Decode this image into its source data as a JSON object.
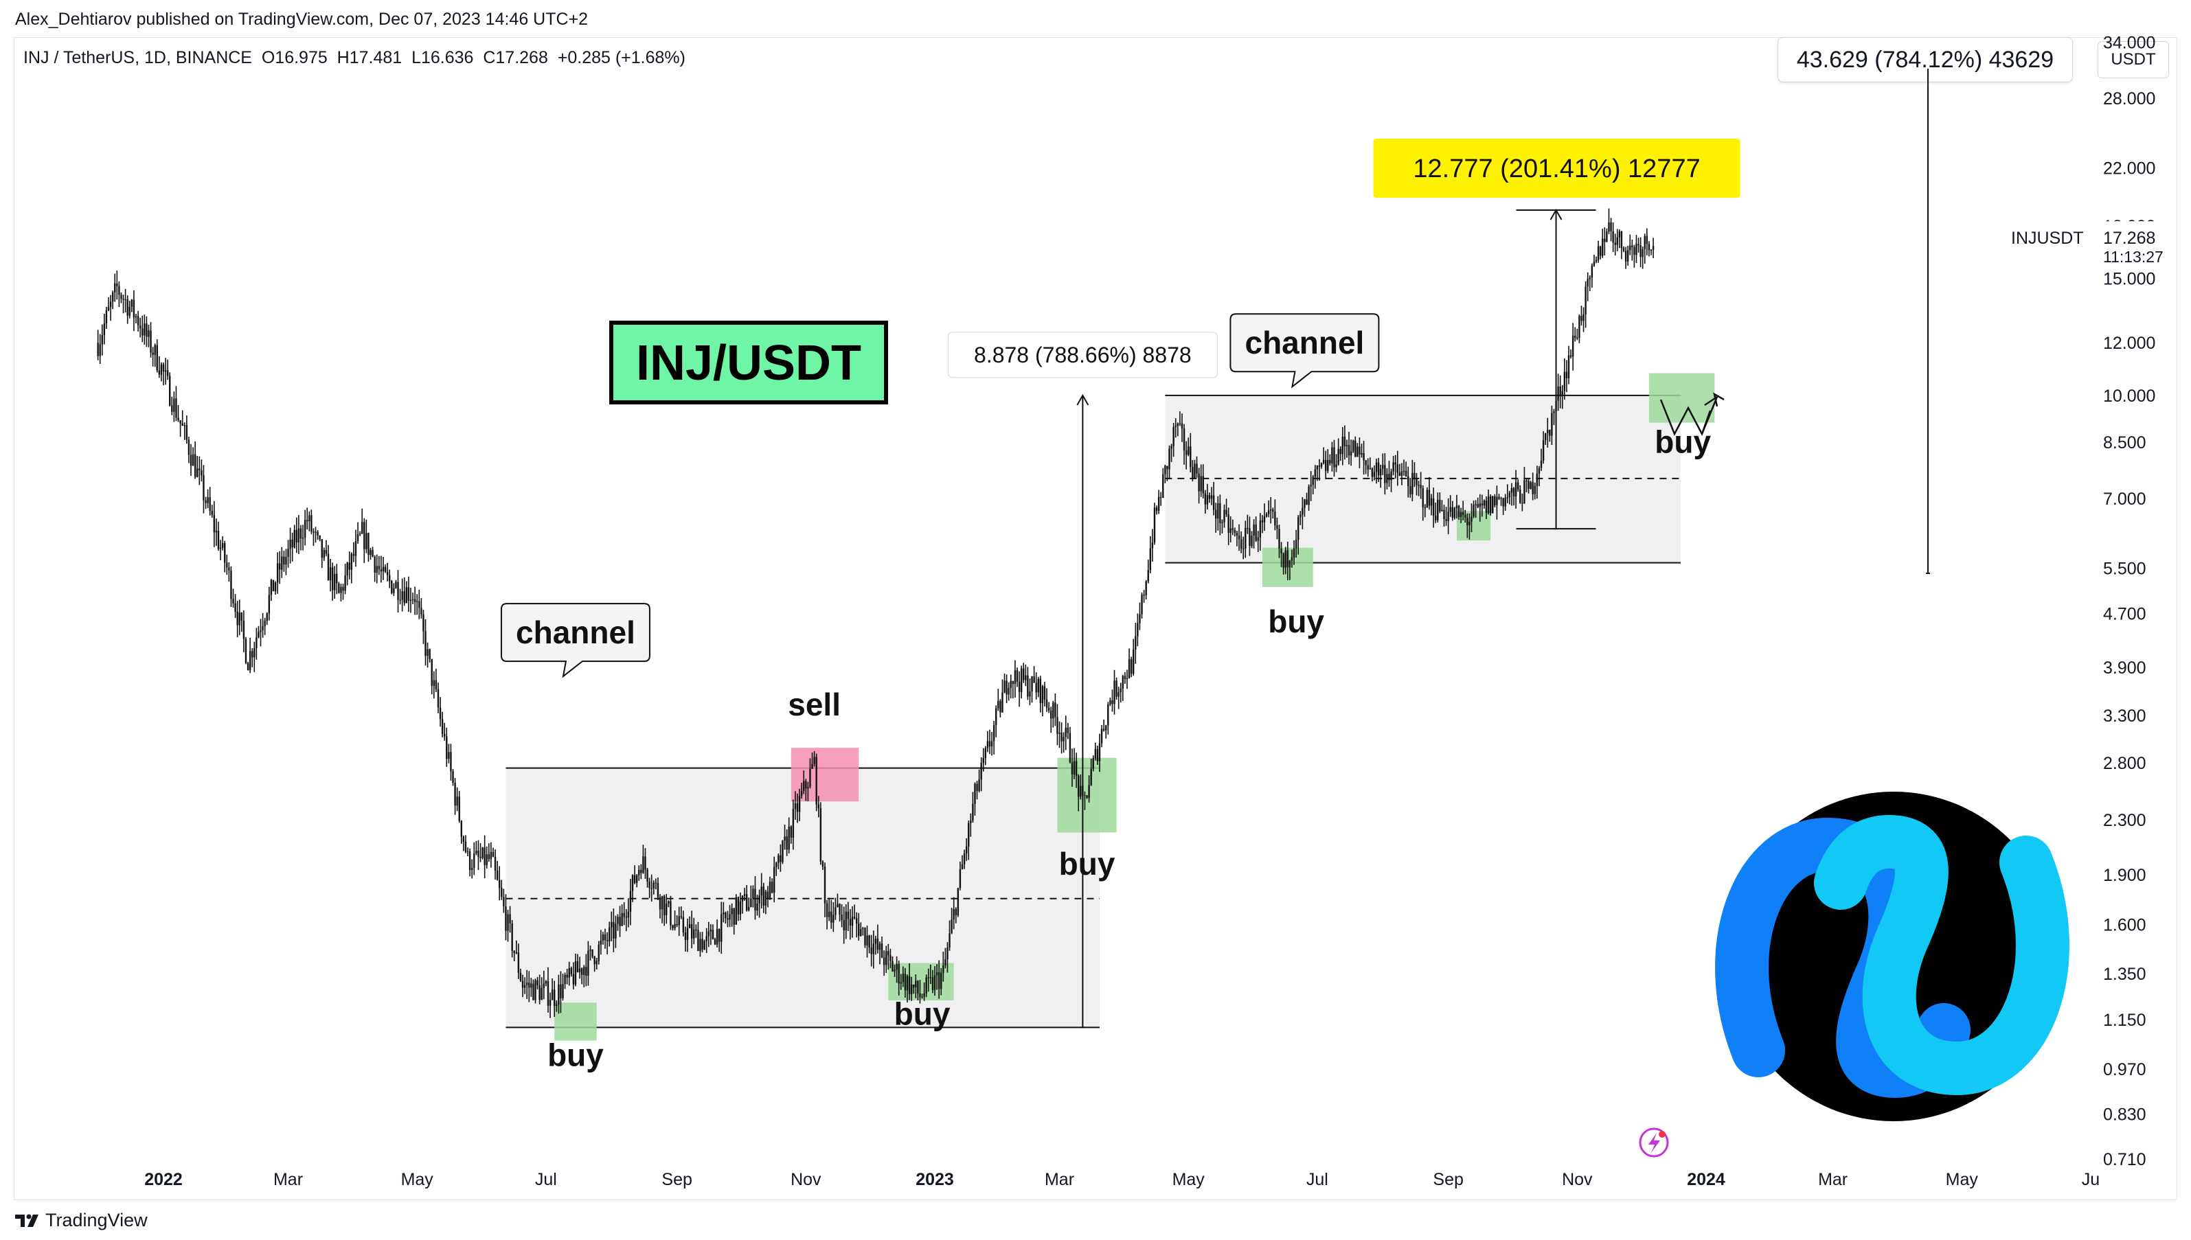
{
  "publisher": "Alex_Dehtiarov published on TradingView.com, Dec 07, 2023 14:46 UTC+2",
  "symbol_info": "INJ / TetherUS, 1D, BINANCE  O16.975  H17.481  L16.636  C17.268  +0.285 (+1.68%)",
  "currency": "USDT",
  "footer_brand": "TradingView",
  "chart_data": {
    "type": "candlestick",
    "title": "INJ/USDT",
    "symbol": "INJ / TetherUS, 1D, BINANCE",
    "last_price": {
      "label": "INJUSDT",
      "value": "17.268",
      "countdown": "11:13:27"
    },
    "y_scale": "log",
    "ylim": [
      0.65,
      40
    ],
    "y_ticks": [
      "34.000",
      "28.000",
      "22.000",
      "18.000",
      "15.000",
      "12.000",
      "10.000",
      "8.500",
      "7.000",
      "5.500",
      "4.700",
      "3.900",
      "3.300",
      "2.800",
      "2.300",
      "1.900",
      "1.600",
      "1.350",
      "1.150",
      "0.970",
      "0.830",
      "0.710"
    ],
    "x_ticks": [
      {
        "label": "2022",
        "date": "2022-01-01",
        "bold": true
      },
      {
        "label": "Mar",
        "date": "2022-03-01"
      },
      {
        "label": "May",
        "date": "2022-05-01"
      },
      {
        "label": "Jul",
        "date": "2022-07-01"
      },
      {
        "label": "Sep",
        "date": "2022-09-01"
      },
      {
        "label": "Nov",
        "date": "2022-11-01"
      },
      {
        "label": "2023",
        "date": "2023-01-01",
        "bold": true
      },
      {
        "label": "Mar",
        "date": "2023-03-01"
      },
      {
        "label": "May",
        "date": "2023-05-01"
      },
      {
        "label": "Jul",
        "date": "2023-07-01"
      },
      {
        "label": "Sep",
        "date": "2023-09-01"
      },
      {
        "label": "Nov",
        "date": "2023-11-01"
      },
      {
        "label": "2024",
        "date": "2024-01-01",
        "bold": true
      },
      {
        "label": "Mar",
        "date": "2024-03-01"
      },
      {
        "label": "May",
        "date": "2024-05-01"
      },
      {
        "label": "Ju",
        "date": "2024-07-01"
      }
    ],
    "price_path": [
      [
        "2021-12-01",
        12.0
      ],
      [
        "2021-12-10",
        14.5
      ],
      [
        "2021-12-20",
        13.0
      ],
      [
        "2021-12-31",
        11.0
      ],
      [
        "2022-01-15",
        8.0
      ],
      [
        "2022-01-31",
        5.5
      ],
      [
        "2022-02-10",
        4.0
      ],
      [
        "2022-02-25",
        5.5
      ],
      [
        "2022-03-10",
        6.5
      ],
      [
        "2022-03-25",
        5.0
      ],
      [
        "2022-04-05",
        6.2
      ],
      [
        "2022-04-15",
        5.3
      ],
      [
        "2022-04-30",
        5.0
      ],
      [
        "2022-05-10",
        3.5
      ],
      [
        "2022-05-25",
        2.0
      ],
      [
        "2022-06-05",
        2.0
      ],
      [
        "2022-06-20",
        1.3
      ],
      [
        "2022-07-05",
        1.25
      ],
      [
        "2022-07-20",
        1.4
      ],
      [
        "2022-08-05",
        1.6
      ],
      [
        "2022-08-15",
        2.0
      ],
      [
        "2022-08-31",
        1.6
      ],
      [
        "2022-09-15",
        1.5
      ],
      [
        "2022-09-30",
        1.7
      ],
      [
        "2022-10-15",
        1.8
      ],
      [
        "2022-10-28",
        2.4
      ],
      [
        "2022-11-05",
        2.8
      ],
      [
        "2022-11-10",
        1.7
      ],
      [
        "2022-11-25",
        1.6
      ],
      [
        "2022-12-10",
        1.4
      ],
      [
        "2022-12-25",
        1.25
      ],
      [
        "2023-01-05",
        1.35
      ],
      [
        "2023-01-20",
        2.5
      ],
      [
        "2023-02-05",
        3.8
      ],
      [
        "2023-02-20",
        3.6
      ],
      [
        "2023-03-05",
        3.0
      ],
      [
        "2023-03-12",
        2.4
      ],
      [
        "2023-03-25",
        3.5
      ],
      [
        "2023-04-05",
        4.0
      ],
      [
        "2023-04-15",
        6.5
      ],
      [
        "2023-04-25",
        9.0
      ],
      [
        "2023-05-10",
        7.0
      ],
      [
        "2023-05-25",
        6.0
      ],
      [
        "2023-06-10",
        6.5
      ],
      [
        "2023-06-15",
        5.5
      ],
      [
        "2023-06-30",
        7.5
      ],
      [
        "2023-07-15",
        8.5
      ],
      [
        "2023-07-25",
        7.8
      ],
      [
        "2023-08-10",
        7.6
      ],
      [
        "2023-08-25",
        6.8
      ],
      [
        "2023-09-10",
        6.5
      ],
      [
        "2023-09-25",
        7.0
      ],
      [
        "2023-10-10",
        7.2
      ],
      [
        "2023-10-25",
        10.5
      ],
      [
        "2023-11-05",
        14.0
      ],
      [
        "2023-11-15",
        18.0
      ],
      [
        "2023-11-25",
        16.5
      ],
      [
        "2023-12-07",
        17.268
      ]
    ],
    "rectangles": [
      {
        "name": "channel-2022",
        "from": "2022-06-12",
        "to": "2023-03-20",
        "top": 2.75,
        "bottom": 1.12,
        "mid": 1.75
      },
      {
        "name": "channel-2023",
        "from": "2023-04-20",
        "to": "2023-12-20",
        "top": 10.0,
        "bottom": 5.6,
        "mid": 7.5
      }
    ],
    "zones": [
      {
        "kind": "buy",
        "from": "2022-07-05",
        "to": "2022-07-25",
        "top": 1.22,
        "bottom": 1.07
      },
      {
        "kind": "sell",
        "from": "2022-10-25",
        "to": "2022-11-26",
        "top": 2.95,
        "bottom": 2.45
      },
      {
        "kind": "buy",
        "from": "2022-12-10",
        "to": "2023-01-10",
        "top": 1.4,
        "bottom": 1.23
      },
      {
        "kind": "buy",
        "from": "2023-02-28",
        "to": "2023-03-28",
        "top": 2.85,
        "bottom": 2.2
      },
      {
        "kind": "buy",
        "from": "2023-06-05",
        "to": "2023-06-29",
        "top": 5.9,
        "bottom": 5.15
      },
      {
        "kind": "buy",
        "from": "2023-09-05",
        "to": "2023-09-21",
        "top": 6.7,
        "bottom": 6.05
      },
      {
        "kind": "buy",
        "from": "2023-12-05",
        "to": "2024-01-05",
        "top": 10.8,
        "bottom": 9.1
      }
    ],
    "measures": [
      {
        "text": "8.878 (788.66%) 8878",
        "date": "2023-03-12",
        "from": 1.12,
        "to": 10.0,
        "style": "white"
      },
      {
        "text": "12.777 (201.41%) 12777",
        "date": "2023-10-22",
        "from": 6.3,
        "to": 19.0,
        "style": "yellow"
      },
      {
        "text": "43.629 (784.12%) 43629",
        "date": "2024-04-15",
        "from": 5.4,
        "to": 48.0,
        "style": "white"
      }
    ],
    "annotations": [
      {
        "kind": "label",
        "text": "channel",
        "date": "2022-07-15",
        "price": 4.4
      },
      {
        "kind": "label",
        "text": "channel",
        "date": "2023-06-25",
        "price": 12.0
      },
      {
        "kind": "text",
        "text": "sell",
        "date": "2022-11-05",
        "price": 3.3
      },
      {
        "kind": "text",
        "text": "buy",
        "date": "2022-07-15",
        "price": 0.98
      },
      {
        "kind": "text",
        "text": "buy",
        "date": "2022-12-26",
        "price": 1.13
      },
      {
        "kind": "text",
        "text": "buy",
        "date": "2023-03-14",
        "price": 1.9
      },
      {
        "kind": "text",
        "text": "buy",
        "date": "2023-06-21",
        "price": 4.4
      },
      {
        "kind": "text",
        "text": "buy",
        "date": "2023-12-21",
        "price": 8.2
      }
    ]
  },
  "title_badge": {
    "text": "INJ/USDT",
    "bg": "#6ef5a6",
    "border": "#000000"
  },
  "colors": {
    "buy_zone": "#9ed99a",
    "sell_zone": "#f48fb1",
    "channel_fill": "#f0f0f2",
    "candles": "#111111",
    "yellow": "#fff200",
    "logo_blue": "#0f80f7",
    "logo_cyan": "#12c8f5"
  }
}
